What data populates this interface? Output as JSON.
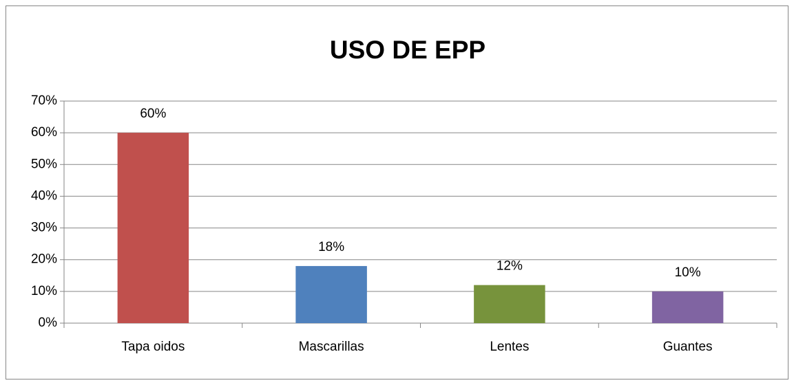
{
  "chart_data": {
    "type": "bar",
    "title": "USO DE EPP",
    "categories": [
      "Tapa oidos",
      "Mascarillas",
      "Lentes",
      "Guantes"
    ],
    "values": [
      60,
      18,
      12,
      10
    ],
    "value_labels": [
      "60%",
      "18%",
      "12%",
      "10%"
    ],
    "colors": [
      "#c0504d",
      "#4f81bd",
      "#77933c",
      "#8064a2"
    ],
    "ylim": [
      0,
      70
    ],
    "yticks": [
      {
        "value": 0,
        "label": "0%"
      },
      {
        "value": 10,
        "label": "10%"
      },
      {
        "value": 20,
        "label": "20%"
      },
      {
        "value": 30,
        "label": "30%"
      },
      {
        "value": 40,
        "label": "40%"
      },
      {
        "value": 50,
        "label": "50%"
      },
      {
        "value": 60,
        "label": "60%"
      },
      {
        "value": 70,
        "label": "70%"
      }
    ],
    "grid": true
  }
}
